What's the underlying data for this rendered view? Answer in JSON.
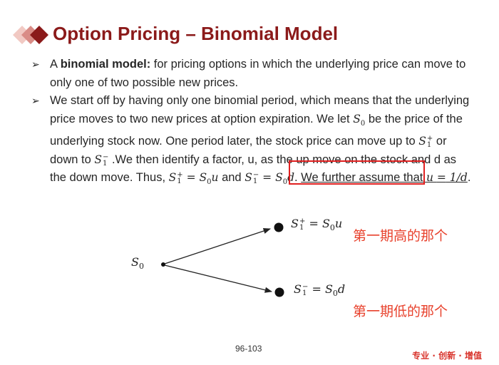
{
  "title": "Option Pricing – Binomial Model",
  "bullets": {
    "b1_bold": "binomial model:",
    "b1_pre": "A ",
    "b1_rest": " for pricing options in which the underlying price can move to only one of two possible new prices.",
    "b2_a": "We start off by having only one binomial period, which means that the underlying price moves to two new prices at option expiration. We let ",
    "b2_b": " be the price of the underlying stock now. One period later, the stock price can move up to ",
    "b2_c": " or down to ",
    "b2_d": " .We then identify a factor, u, as the up move on the stock and d as the down move. Thus, ",
    "b2_e": " and ",
    "b2_f": ". ",
    "b2_g": "We further assume that ",
    "b2_h": "."
  },
  "diagram": {
    "root_label": "S0",
    "up_label": "S1+ = S0u",
    "down_label": "S1− = S0d",
    "up_note": "第一期高的那个",
    "down_note": "第一期低的那个"
  },
  "page_number": "96-103",
  "footer": "专业 · 创新 · 增值",
  "colors": {
    "title": "#8B1A1A",
    "highlight": "#e02020",
    "note": "#e8412c"
  }
}
